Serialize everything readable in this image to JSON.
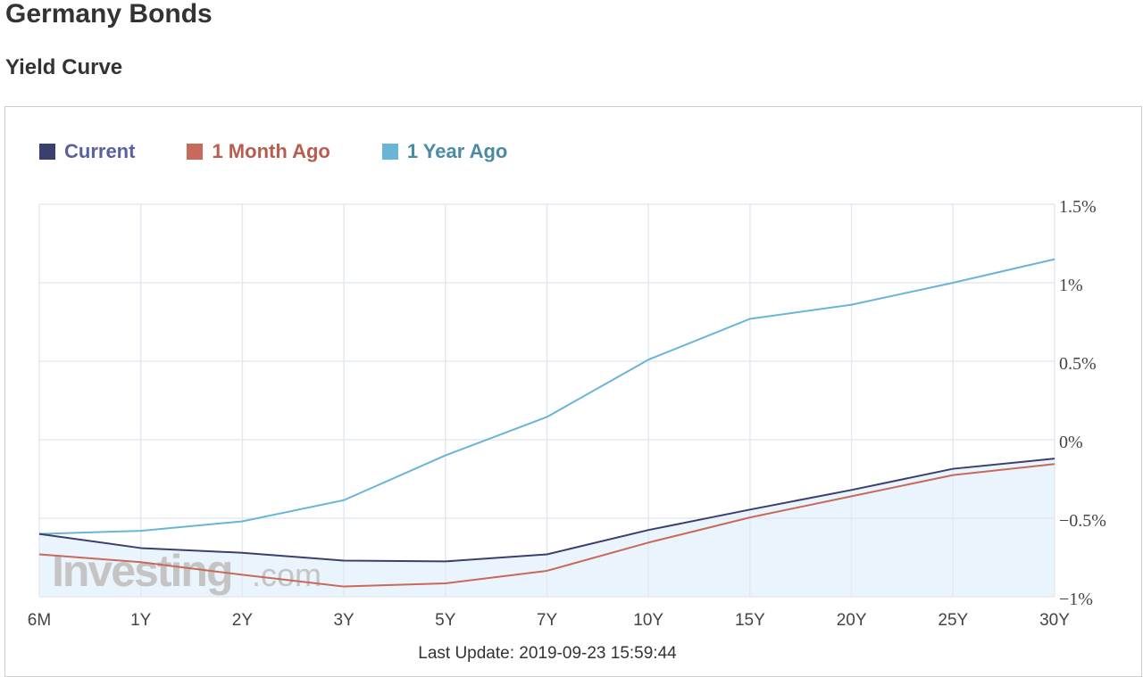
{
  "header": {
    "title": "Germany Bonds",
    "subtitle": "Yield Curve"
  },
  "legend": {
    "items": [
      {
        "label": "Current",
        "color": "#3b3f6e",
        "text_color": "#5a5f9e"
      },
      {
        "label": "1 Month Ago",
        "color": "#c8695a",
        "text_color": "#b85c4f"
      },
      {
        "label": "1 Year Ago",
        "color": "#6ab4d8",
        "text_color": "#4a8aa6"
      }
    ]
  },
  "watermark": {
    "main": "Investing",
    "suffix": ".com"
  },
  "footer": {
    "last_update": "Last Update: 2019-09-23 15:59:44"
  },
  "colors": {
    "grid": "#e3e8f2",
    "fill": "#eaf4fc",
    "axis_text": "#444444"
  },
  "chart_data": {
    "type": "line",
    "title": "",
    "xlabel": "",
    "ylabel": "",
    "categories": [
      "6M",
      "1Y",
      "2Y",
      "3Y",
      "5Y",
      "7Y",
      "10Y",
      "15Y",
      "20Y",
      "25Y",
      "30Y"
    ],
    "ylim": [
      -1,
      1.5
    ],
    "yticks": [
      1.5,
      1,
      0.5,
      0,
      -0.5,
      -1
    ],
    "ytick_labels": [
      "1.5%",
      "1%",
      "0.5%",
      "0%",
      "−0.5%",
      "−1%"
    ],
    "y_axis_position": "right",
    "grid": true,
    "legend_position": "top-left",
    "series": [
      {
        "name": "Current",
        "color": "#3b3f6e",
        "filled": true,
        "values": [
          -0.6,
          -0.69,
          -0.72,
          -0.77,
          -0.775,
          -0.73,
          -0.575,
          -0.445,
          -0.32,
          -0.185,
          -0.12
        ]
      },
      {
        "name": "1 Month Ago",
        "color": "#c8695a",
        "values": [
          -0.73,
          -0.78,
          -0.86,
          -0.935,
          -0.915,
          -0.835,
          -0.655,
          -0.495,
          -0.36,
          -0.225,
          -0.155
        ]
      },
      {
        "name": "1 Year Ago",
        "color": "#6ab4d8",
        "values": [
          -0.6,
          -0.58,
          -0.52,
          -0.385,
          -0.1,
          0.145,
          0.51,
          0.77,
          0.86,
          1.0,
          1.15
        ]
      }
    ]
  }
}
